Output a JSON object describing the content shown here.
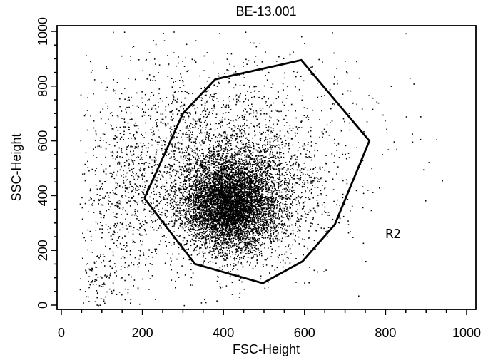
{
  "chart_data": {
    "type": "scatter",
    "title": "BE-13.001",
    "xlabel": "FSC-Height",
    "ylabel": "SSC-Height",
    "xlim": [
      0,
      1000
    ],
    "ylim": [
      0,
      1000
    ],
    "x_ticks": [
      0,
      200,
      400,
      600,
      800,
      1000
    ],
    "y_ticks": [
      0,
      200,
      400,
      600,
      800,
      1000
    ],
    "x_minor_step": 50,
    "y_minor_step": 50,
    "grid": false,
    "point_color": "#000000",
    "clusters": [
      {
        "center": [
          415,
          370
        ],
        "spread": [
          55,
          85
        ],
        "count": 5200
      },
      {
        "center": [
          440,
          420
        ],
        "spread": [
          110,
          130
        ],
        "count": 2400
      },
      {
        "center": [
          300,
          560
        ],
        "spread": [
          120,
          190
        ],
        "count": 1100
      },
      {
        "center": [
          150,
          380
        ],
        "spread": [
          50,
          200
        ],
        "count": 420
      },
      {
        "center": [
          95,
          90
        ],
        "spread": [
          30,
          70
        ],
        "count": 90
      },
      {
        "center": [
          520,
          700
        ],
        "spread": [
          150,
          150
        ],
        "count": 350
      }
    ],
    "gates": [
      {
        "name": "R2",
        "color": "#000000",
        "vertices": [
          [
            205,
            390
          ],
          [
            300,
            700
          ],
          [
            380,
            825
          ],
          [
            592,
            895
          ],
          [
            760,
            600
          ],
          [
            675,
            295
          ],
          [
            595,
            160
          ],
          [
            497,
            80
          ],
          [
            330,
            150
          ],
          [
            205,
            390
          ]
        ],
        "label_position": [
          800,
          245
        ]
      }
    ]
  }
}
